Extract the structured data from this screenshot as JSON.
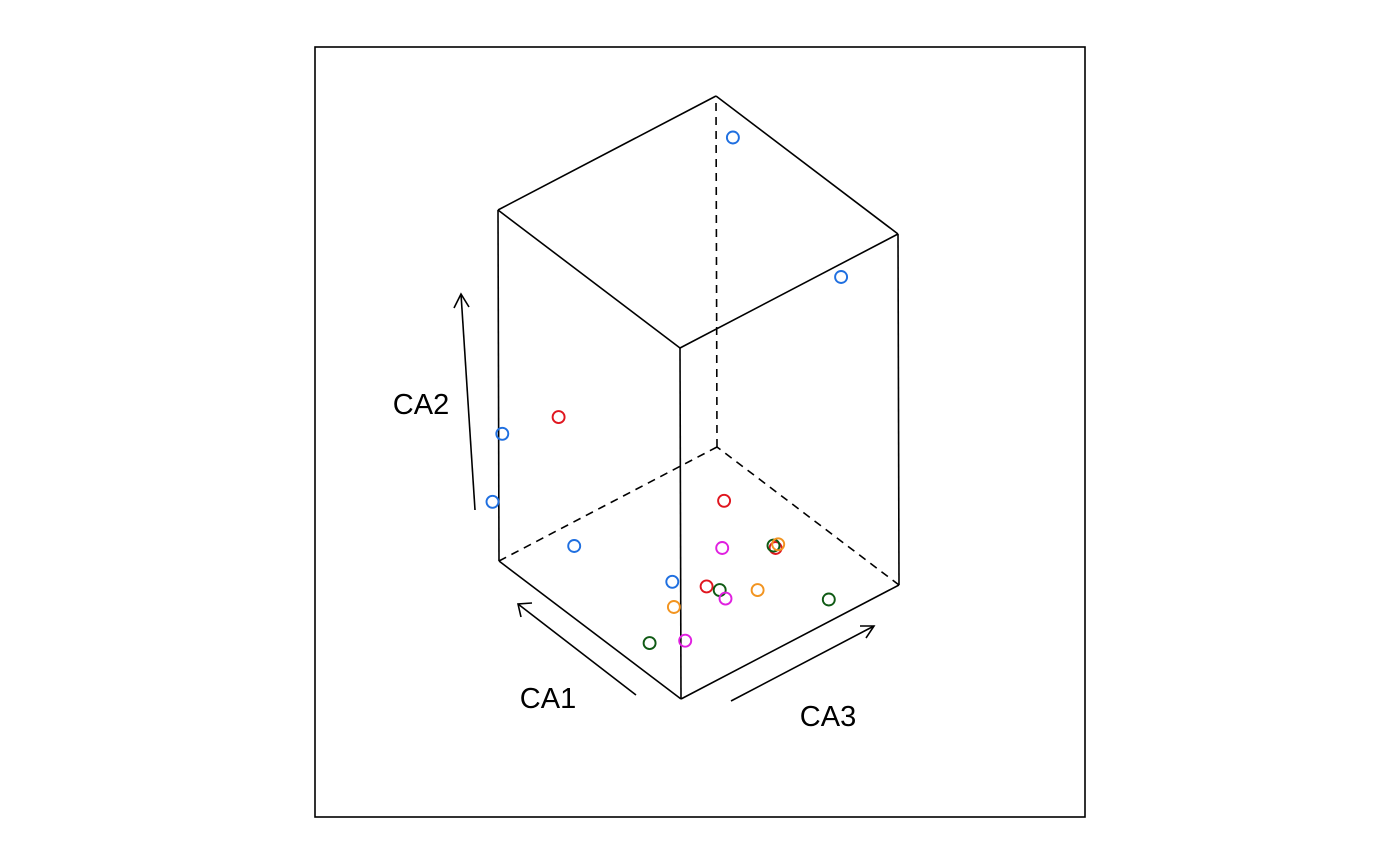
{
  "chart_data": {
    "type": "scatter",
    "title": "",
    "axes": {
      "x": {
        "label": "CA1"
      },
      "y": {
        "label": "CA2"
      },
      "z": {
        "label": "CA3"
      }
    },
    "grid": false,
    "legend": "none",
    "box": true,
    "marker": "open-circle",
    "range": {
      "x": [
        0,
        1
      ],
      "y": [
        0,
        1
      ],
      "z": [
        0,
        1
      ]
    },
    "groups": [
      {
        "color": "#1f6fe0",
        "points": [
          {
            "x": 0.98,
            "y": 0.87,
            "z": 1.06
          },
          {
            "x": 0.29,
            "y": 0.77,
            "z": 0.98
          },
          {
            "x": 0.07,
            "y": 0.3,
            "z": 0.02
          },
          {
            "x": 0.53,
            "y": 0.49,
            "z": -0.42
          },
          {
            "x": 0.92,
            "y": 0.41,
            "z": -0.05
          },
          {
            "x": 0.73,
            "y": 0.11,
            "z": 0.12
          }
        ]
      },
      {
        "color": "#e0161f",
        "points": [
          {
            "x": 0.79,
            "y": 0.46,
            "z": 0.1
          },
          {
            "x": 0.35,
            "y": 0.05,
            "z": 0.41
          },
          {
            "x": 0.33,
            "y": 0.07,
            "z": 0.71
          },
          {
            "x": 0.12,
            "y": 0.42,
            "z": 0.3
          }
        ]
      },
      {
        "color": "#0f5a14",
        "points": [
          {
            "x": 0.05,
            "y": 0.03,
            "z": 0.72
          },
          {
            "x": 0.33,
            "y": 0.08,
            "z": 0.7
          },
          {
            "x": 0.35,
            "y": 0.02,
            "z": 0.47
          },
          {
            "x": 0.28,
            "y": 0.02,
            "z": 0.09
          }
        ]
      },
      {
        "color": "#e020e0",
        "points": [
          {
            "x": 0.12,
            "y": 0.08,
            "z": 0.12
          },
          {
            "x": 0.21,
            "y": 0.08,
            "z": 0.38
          },
          {
            "x": 0.48,
            "y": 0.05,
            "z": 0.59
          }
        ]
      },
      {
        "color": "#f29420",
        "points": [
          {
            "x": 0.35,
            "y": 0.04,
            "z": 0.26
          },
          {
            "x": 0.25,
            "y": 0.03,
            "z": 0.56
          },
          {
            "x": 0.34,
            "y": 0.07,
            "z": 0.73
          }
        ]
      }
    ]
  }
}
